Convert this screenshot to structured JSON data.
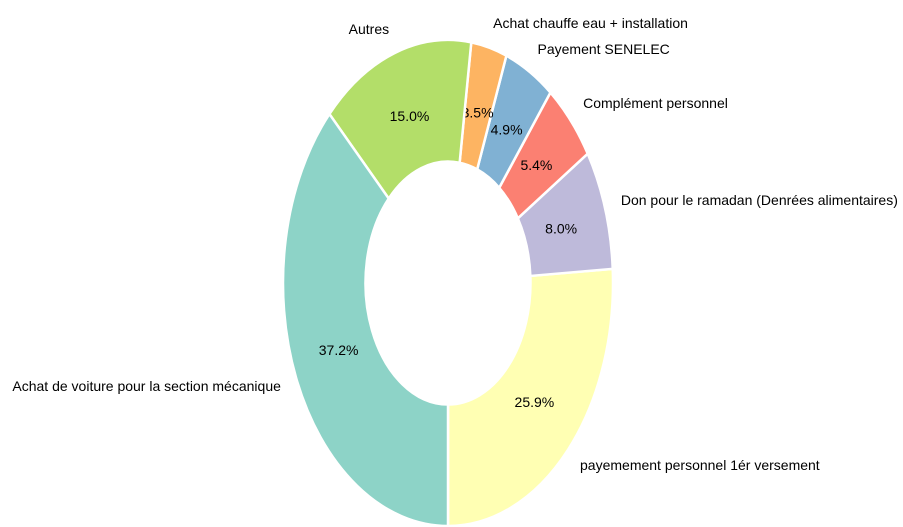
{
  "chart_data": {
    "type": "pie",
    "donut": true,
    "categories": [
      "payemement personnel 1ér versement",
      "Don pour le ramadan (Denrées alimentaires)",
      "Complément personnel",
      "Payement SENELEC",
      "Achat chauffe eau + installation",
      "Autres",
      "Achat de voiture pour la section mécanique"
    ],
    "values": [
      25.9,
      8.0,
      5.4,
      4.9,
      3.5,
      15.0,
      37.2
    ],
    "value_labels": [
      "25.9%",
      "8.0%",
      "5.4%",
      "4.9%",
      "3.5%",
      "15.0%",
      "37.2%"
    ],
    "colors": [
      "#ffffb3",
      "#bebada",
      "#fb8072",
      "#80b1d3",
      "#fdb462",
      "#b3de69",
      "#8dd3c7"
    ]
  }
}
